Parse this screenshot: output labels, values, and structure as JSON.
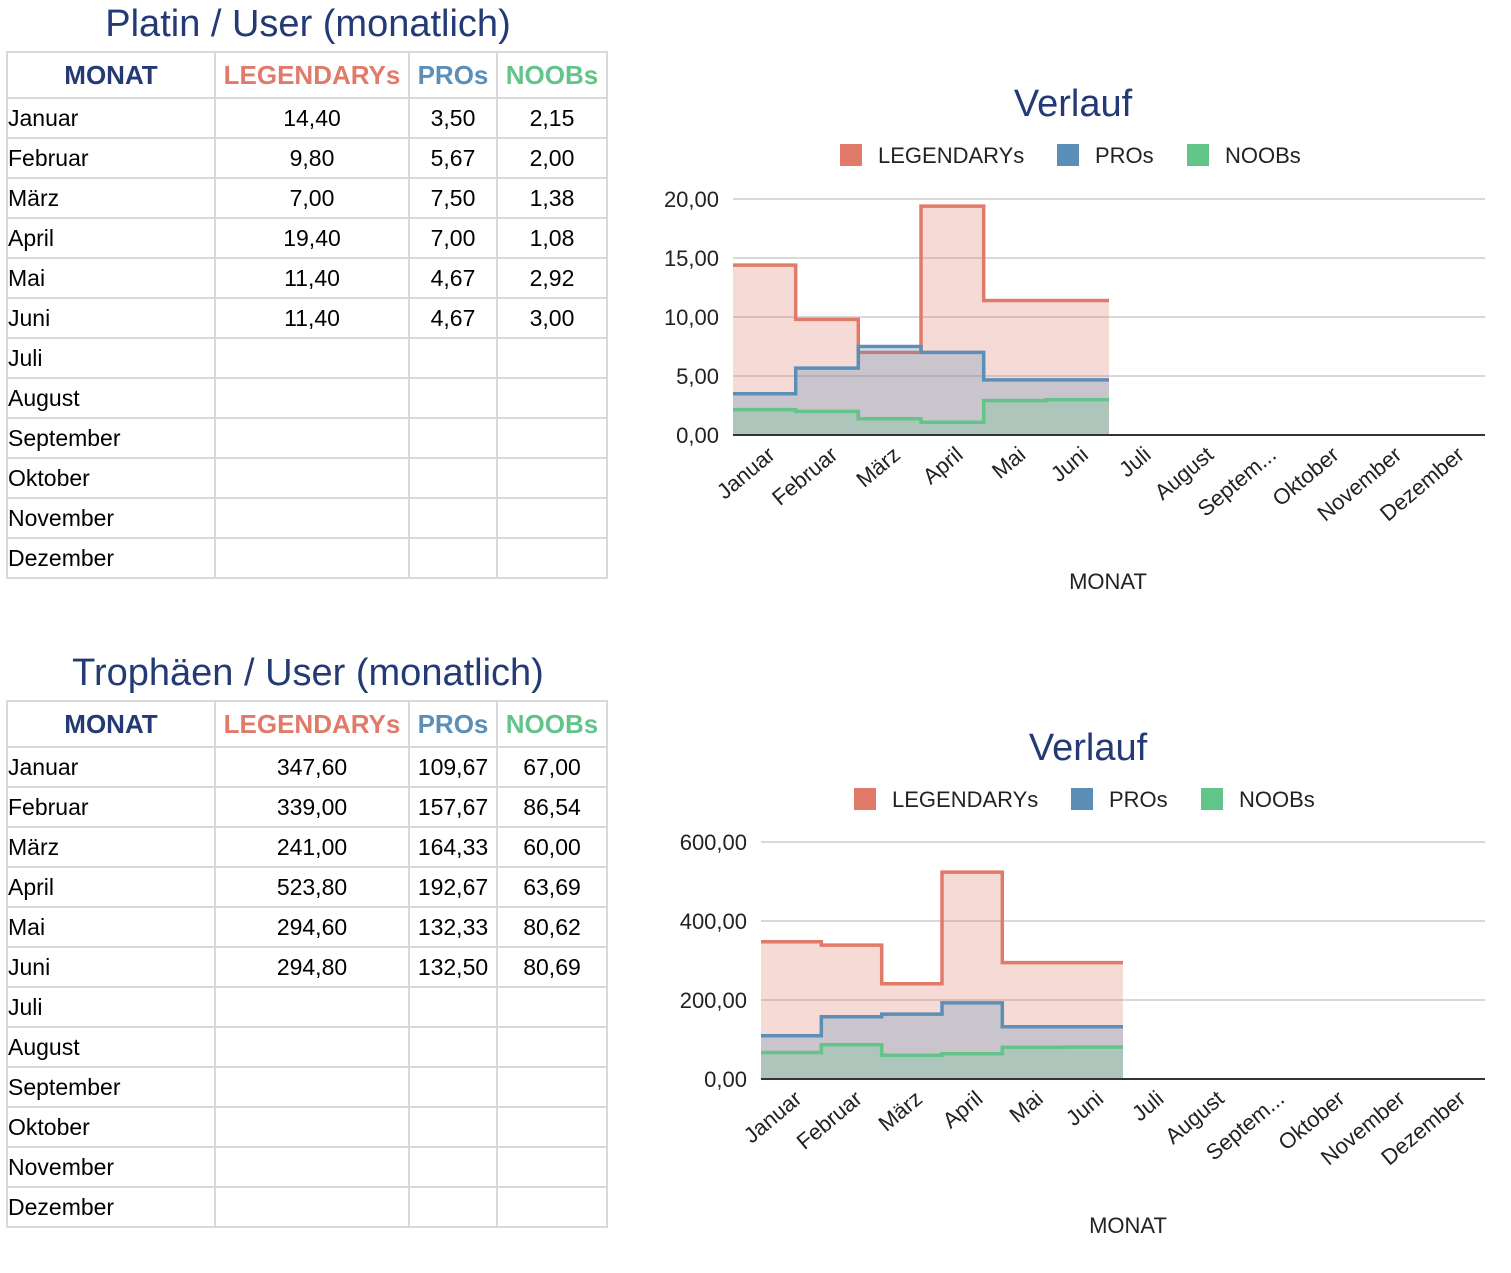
{
  "tables": [
    {
      "title": "Platin / User (monatlich)",
      "headers": [
        "MONAT",
        "LEGENDARYs",
        "PROs",
        "NOOBs"
      ],
      "rows": [
        [
          "Januar",
          "14,40",
          "3,50",
          "2,15"
        ],
        [
          "Februar",
          "9,80",
          "5,67",
          "2,00"
        ],
        [
          "März",
          "7,00",
          "7,50",
          "1,38"
        ],
        [
          "April",
          "19,40",
          "7,00",
          "1,08"
        ],
        [
          "Mai",
          "11,40",
          "4,67",
          "2,92"
        ],
        [
          "Juni",
          "11,40",
          "4,67",
          "3,00"
        ],
        [
          "Juli",
          "",
          "",
          ""
        ],
        [
          "August",
          "",
          "",
          ""
        ],
        [
          "September",
          "",
          "",
          ""
        ],
        [
          "Oktober",
          "",
          "",
          ""
        ],
        [
          "November",
          "",
          "",
          ""
        ],
        [
          "Dezember",
          "",
          "",
          ""
        ]
      ]
    },
    {
      "title": "Trophäen / User (monatlich)",
      "headers": [
        "MONAT",
        "LEGENDARYs",
        "PROs",
        "NOOBs"
      ],
      "rows": [
        [
          "Januar",
          "347,60",
          "109,67",
          "67,00"
        ],
        [
          "Februar",
          "339,00",
          "157,67",
          "86,54"
        ],
        [
          "März",
          "241,00",
          "164,33",
          "60,00"
        ],
        [
          "April",
          "523,80",
          "192,67",
          "63,69"
        ],
        [
          "Mai",
          "294,60",
          "132,33",
          "80,62"
        ],
        [
          "Juni",
          "294,80",
          "132,50",
          "80,69"
        ],
        [
          "Juli",
          "",
          "",
          ""
        ],
        [
          "August",
          "",
          "",
          ""
        ],
        [
          "September",
          "",
          "",
          ""
        ],
        [
          "Oktober",
          "",
          "",
          ""
        ],
        [
          "November",
          "",
          "",
          ""
        ],
        [
          "Dezember",
          "",
          "",
          ""
        ]
      ]
    }
  ],
  "colors": {
    "title": "#233a74",
    "legendary": "#e07b6a",
    "pro": "#5b8fb8",
    "noob": "#63c48a",
    "grid": "#d9d9d9",
    "axis": "#333333"
  },
  "chart_data": [
    {
      "type": "area",
      "stepped": true,
      "title": "Verlauf",
      "xlabel": "MONAT",
      "ylabel": "",
      "categories": [
        "Januar",
        "Februar",
        "März",
        "April",
        "Mai",
        "Juni",
        "Juli",
        "August",
        "Septem...",
        "Oktober",
        "November",
        "Dezember"
      ],
      "series": [
        {
          "name": "LEGENDARYs",
          "values": [
            14.4,
            9.8,
            7.0,
            19.4,
            11.4,
            11.4,
            null,
            null,
            null,
            null,
            null,
            null
          ]
        },
        {
          "name": "PROs",
          "values": [
            3.5,
            5.67,
            7.5,
            7.0,
            4.67,
            4.67,
            null,
            null,
            null,
            null,
            null,
            null
          ]
        },
        {
          "name": "NOOBs",
          "values": [
            2.15,
            2.0,
            1.38,
            1.08,
            2.92,
            3.0,
            null,
            null,
            null,
            null,
            null,
            null
          ]
        }
      ],
      "ylim": [
        0,
        20
      ],
      "yticks": [
        "0,00",
        "5,00",
        "10,00",
        "15,00",
        "20,00"
      ],
      "legend_position": "top",
      "grid": true
    },
    {
      "type": "area",
      "stepped": true,
      "title": "Verlauf",
      "xlabel": "MONAT",
      "ylabel": "",
      "categories": [
        "Januar",
        "Februar",
        "März",
        "April",
        "Mai",
        "Juni",
        "Juli",
        "August",
        "Septem...",
        "Oktober",
        "November",
        "Dezember"
      ],
      "series": [
        {
          "name": "LEGENDARYs",
          "values": [
            347.6,
            339.0,
            241.0,
            523.8,
            294.6,
            294.8,
            null,
            null,
            null,
            null,
            null,
            null
          ]
        },
        {
          "name": "PROs",
          "values": [
            109.67,
            157.67,
            164.33,
            192.67,
            132.33,
            132.5,
            null,
            null,
            null,
            null,
            null,
            null
          ]
        },
        {
          "name": "NOOBs",
          "values": [
            67.0,
            86.54,
            60.0,
            63.69,
            80.62,
            80.69,
            null,
            null,
            null,
            null,
            null,
            null
          ]
        }
      ],
      "ylim": [
        0,
        600
      ],
      "yticks": [
        "0,00",
        "200,00",
        "400,00",
        "600,00"
      ],
      "legend_position": "top",
      "grid": true
    }
  ]
}
